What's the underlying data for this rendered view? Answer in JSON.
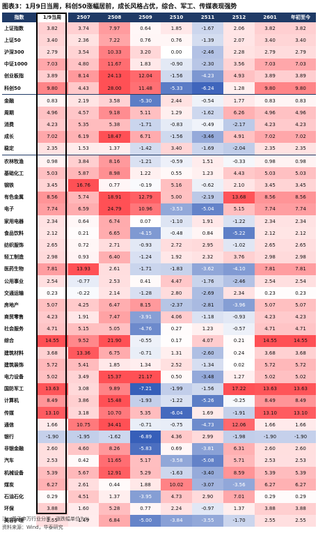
{
  "title": "图表3：1月9日当周，科创50涨幅居前，成长风格占优，综合、军工、传媒表现强势",
  "columns": [
    "指数",
    "1/9当周",
    "2507",
    "2508",
    "2509",
    "2510",
    "2511",
    "2512",
    "2601",
    "年初至今"
  ],
  "groups": [
    {
      "rows": [
        {
          "name": "上证指数",
          "values": [
            "3.82",
            "3.74",
            "7.97",
            "0.64",
            "1.85",
            "-1.67",
            "2.06",
            "3.82",
            "3.82"
          ]
        },
        {
          "name": "上证50",
          "values": [
            "3.40",
            "2.36",
            "7.22",
            "0.76",
            "0.76",
            "-1.39",
            "2.07",
            "3.40",
            "3.40"
          ]
        },
        {
          "name": "沪深300",
          "values": [
            "2.79",
            "3.54",
            "10.33",
            "3.20",
            "0.00",
            "-2.46",
            "2.28",
            "2.79",
            "2.79"
          ]
        },
        {
          "name": "中证1000",
          "values": [
            "7.03",
            "4.80",
            "11.67",
            "1.83",
            "-0.90",
            "-2.30",
            "3.56",
            "7.03",
            "7.03"
          ]
        },
        {
          "name": "创业板指",
          "values": [
            "3.89",
            "8.14",
            "24.13",
            "12.04",
            "-1.56",
            "-4.23",
            "4.93",
            "3.89",
            "3.89"
          ]
        },
        {
          "name": "科创50",
          "values": [
            "9.80",
            "4.43",
            "28.00",
            "11.48",
            "-5.33",
            "-6.24",
            "1.28",
            "9.80",
            "9.80"
          ]
        }
      ]
    },
    {
      "rows": [
        {
          "name": "金融",
          "values": [
            "0.83",
            "2.19",
            "3.58",
            "-5.30",
            "2.44",
            "-0.54",
            "1.77",
            "0.83",
            "0.83"
          ]
        },
        {
          "name": "周期",
          "values": [
            "4.96",
            "4.57",
            "9.18",
            "5.11",
            "1.29",
            "-1.62",
            "6.26",
            "4.96",
            "4.96"
          ]
        },
        {
          "name": "消费",
          "values": [
            "4.23",
            "5.35",
            "5.38",
            "-1.71",
            "-0.83",
            "-0.49",
            "-2.17",
            "4.23",
            "4.23"
          ]
        },
        {
          "name": "成长",
          "values": [
            "7.02",
            "6.19",
            "18.47",
            "6.71",
            "-1.56",
            "-3.46",
            "4.91",
            "7.02",
            "7.02"
          ]
        },
        {
          "name": "稳定",
          "values": [
            "2.35",
            "1.53",
            "1.37",
            "-1.42",
            "3.40",
            "-1.69",
            "-2.04",
            "2.35",
            "2.35"
          ]
        }
      ]
    },
    {
      "rows": [
        {
          "name": "农林牧渔",
          "values": [
            "0.98",
            "3.84",
            "8.16",
            "-1.21",
            "-0.59",
            "1.51",
            "-0.33",
            "0.98",
            "0.98"
          ]
        },
        {
          "name": "基础化工",
          "values": [
            "5.03",
            "5.87",
            "8.98",
            "1.22",
            "0.55",
            "1.23",
            "4.43",
            "5.03",
            "5.03"
          ]
        },
        {
          "name": "钢铁",
          "values": [
            "3.45",
            "16.76",
            "0.77",
            "-0.19",
            "5.16",
            "-0.62",
            "2.10",
            "3.45",
            "3.45"
          ]
        },
        {
          "name": "有色金属",
          "values": [
            "8.56",
            "5.74",
            "18.91",
            "12.79",
            "5.00",
            "-2.19",
            "13.68",
            "8.56",
            "8.56"
          ]
        },
        {
          "name": "电子",
          "values": [
            "7.74",
            "6.59",
            "24.79",
            "10.96",
            "-3.53",
            "-5.04",
            "5.15",
            "7.74",
            "7.74"
          ]
        },
        {
          "name": "家用电器",
          "values": [
            "2.34",
            "0.64",
            "6.74",
            "0.07",
            "-1.10",
            "1.91",
            "-1.22",
            "2.34",
            "2.34"
          ]
        },
        {
          "name": "食品饮料",
          "values": [
            "2.12",
            "0.21",
            "6.65",
            "-4.15",
            "-0.48",
            "0.84",
            "-5.22",
            "2.12",
            "2.12"
          ]
        },
        {
          "name": "纺织服饰",
          "values": [
            "2.65",
            "0.72",
            "2.71",
            "-0.93",
            "2.72",
            "2.95",
            "-1.02",
            "2.65",
            "2.65"
          ]
        },
        {
          "name": "轻工制造",
          "values": [
            "2.98",
            "0.93",
            "6.40",
            "-1.24",
            "1.92",
            "2.32",
            "3.76",
            "2.98",
            "2.98"
          ]
        },
        {
          "name": "医药生物",
          "values": [
            "7.81",
            "13.93",
            "2.61",
            "-1.71",
            "-1.83",
            "-3.62",
            "-4.10",
            "7.81",
            "7.81"
          ]
        },
        {
          "name": "公用事业",
          "values": [
            "2.54",
            "-0.77",
            "2.53",
            "0.41",
            "4.47",
            "-1.76",
            "-2.46",
            "2.54",
            "2.54"
          ]
        },
        {
          "name": "交通运输",
          "values": [
            "0.23",
            "-0.22",
            "2.14",
            "-1.28",
            "2.80",
            "-2.69",
            "2.34",
            "0.23",
            "0.23"
          ]
        },
        {
          "name": "房地产",
          "values": [
            "5.07",
            "4.25",
            "6.47",
            "8.15",
            "-2.37",
            "-2.81",
            "-3.96",
            "5.07",
            "5.07"
          ]
        },
        {
          "name": "商贸零售",
          "values": [
            "4.23",
            "1.91",
            "7.47",
            "-3.91",
            "4.06",
            "-1.18",
            "-0.93",
            "4.23",
            "4.23"
          ]
        },
        {
          "name": "社会服务",
          "values": [
            "4.71",
            "5.15",
            "5.05",
            "-4.76",
            "0.27",
            "1.23",
            "-0.57",
            "4.71",
            "4.71"
          ]
        },
        {
          "name": "综合",
          "values": [
            "14.55",
            "9.52",
            "21.90",
            "-0.55",
            "0.17",
            "4.07",
            "0.21",
            "14.55",
            "14.55"
          ]
        },
        {
          "name": "建筑材料",
          "values": [
            "3.68",
            "13.36",
            "6.75",
            "-0.71",
            "1.31",
            "-2.60",
            "0.24",
            "3.68",
            "3.68"
          ]
        },
        {
          "name": "建筑装饰",
          "values": [
            "5.72",
            "5.41",
            "1.85",
            "1.34",
            "2.52",
            "-1.34",
            "0.02",
            "5.72",
            "5.72"
          ]
        },
        {
          "name": "电力设备",
          "values": [
            "5.02",
            "3.49",
            "15.37",
            "21.17",
            "0.50",
            "-3.48",
            "1.27",
            "5.02",
            "5.02"
          ]
        },
        {
          "name": "国防军工",
          "values": [
            "13.63",
            "3.08",
            "9.89",
            "-7.21",
            "-1.99",
            "-1.56",
            "17.22",
            "13.63",
            "13.63"
          ]
        },
        {
          "name": "计算机",
          "values": [
            "8.49",
            "3.86",
            "15.48",
            "-1.93",
            "-1.22",
            "-5.26",
            "-0.25",
            "8.49",
            "8.49"
          ]
        },
        {
          "name": "传媒",
          "values": [
            "13.10",
            "3.18",
            "10.70",
            "5.35",
            "-6.04",
            "1.69",
            "-1.91",
            "13.10",
            "13.10"
          ]
        },
        {
          "name": "通信",
          "values": [
            "1.66",
            "10.75",
            "34.41",
            "-0.71",
            "-0.75",
            "-4.73",
            "12.06",
            "1.66",
            "1.66"
          ]
        },
        {
          "name": "银行",
          "values": [
            "-1.90",
            "-1.95",
            "-1.62",
            "-6.89",
            "4.36",
            "2.99",
            "-1.98",
            "-1.90",
            "-1.90"
          ]
        },
        {
          "name": "非银金融",
          "values": [
            "2.60",
            "4.60",
            "8.26",
            "-5.83",
            "0.69",
            "-3.81",
            "6.31",
            "2.60",
            "2.60"
          ]
        },
        {
          "name": "汽车",
          "values": [
            "2.53",
            "0.42",
            "11.65",
            "5.17",
            "-3.58",
            "-5.08",
            "5.71",
            "2.53",
            "2.53"
          ]
        },
        {
          "name": "机械设备",
          "values": [
            "5.39",
            "5.67",
            "12.91",
            "5.29",
            "-1.63",
            "-3.40",
            "8.59",
            "5.39",
            "5.39"
          ]
        },
        {
          "name": "煤炭",
          "values": [
            "6.27",
            "2.61",
            "0.44",
            "1.88",
            "10.02",
            "-3.07",
            "-3.56",
            "6.27",
            "6.27"
          ]
        },
        {
          "name": "石油石化",
          "values": [
            "0.29",
            "4.51",
            "1.37",
            "-3.95",
            "4.73",
            "2.90",
            "7.01",
            "0.29",
            "0.29"
          ]
        },
        {
          "name": "环保",
          "values": [
            "3.88",
            "1.60",
            "5.28",
            "0.77",
            "2.24",
            "-0.97",
            "1.37",
            "3.88",
            "3.88"
          ]
        },
        {
          "name": "美容护理",
          "values": [
            "2.55",
            "1.49",
            "6.84",
            "-5.00",
            "-3.84",
            "-3.55",
            "-1.70",
            "2.55",
            "2.55"
          ]
        }
      ]
    }
  ],
  "notes": [
    "注：基于申万行业分类，涨跌幅单位为%",
    "资料来源：Wind，华泰研究"
  ],
  "colors": {
    "header_bg": "#1f3a66",
    "pos_strong": "#e8575b",
    "neg_strong": "#3a5aa8"
  }
}
